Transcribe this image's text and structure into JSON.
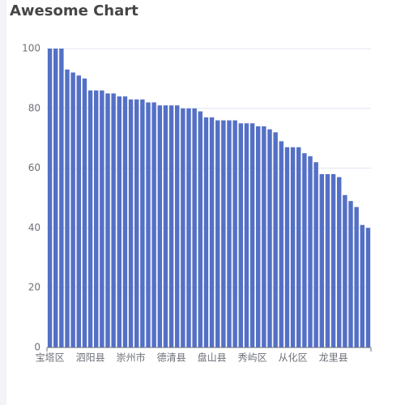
{
  "chart_data": {
    "type": "bar",
    "title": "Awesome Chart",
    "categories": [
      "宝塔区",
      null,
      null,
      null,
      null,
      null,
      null,
      "泗阳县",
      null,
      null,
      null,
      null,
      null,
      null,
      "崇州市",
      null,
      null,
      null,
      null,
      null,
      null,
      "德清县",
      null,
      null,
      null,
      null,
      null,
      null,
      "盘山县",
      null,
      null,
      null,
      null,
      null,
      null,
      "秀屿区",
      null,
      null,
      null,
      null,
      null,
      null,
      "从化区",
      null,
      null,
      null,
      null,
      null,
      null,
      "龙里县",
      null,
      null,
      null,
      null,
      null,
      null
    ],
    "values": [
      100,
      100,
      100,
      93,
      92,
      91,
      90,
      86,
      86,
      86,
      85,
      85,
      84,
      84,
      83,
      83,
      83,
      82,
      82,
      81,
      81,
      81,
      81,
      80,
      80,
      80,
      79,
      77,
      77,
      76,
      76,
      76,
      76,
      75,
      75,
      75,
      74,
      74,
      73,
      72,
      69,
      67,
      67,
      67,
      65,
      64,
      62,
      58,
      58,
      58,
      57,
      51,
      49,
      47,
      41,
      40
    ],
    "color": "#5470c6",
    "ylim": [
      0,
      100
    ],
    "yticks": [
      0,
      20,
      40,
      60,
      80,
      100
    ],
    "grid": true
  }
}
